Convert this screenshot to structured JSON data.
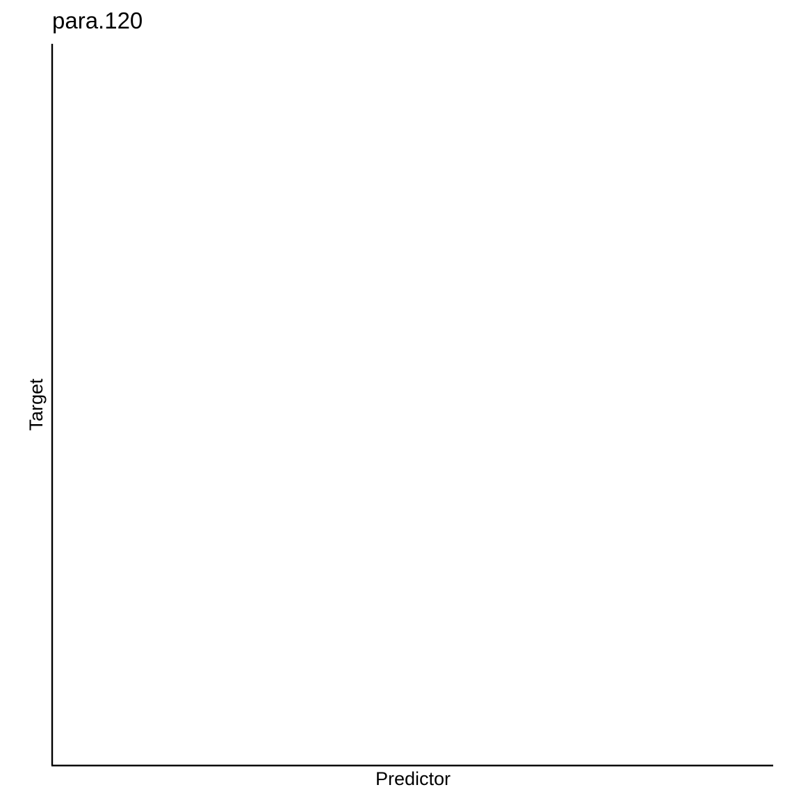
{
  "chart_data": {
    "type": "scatter",
    "title": "para.120",
    "xlabel": "Predictor",
    "ylabel": "Target",
    "series": [],
    "grid": false,
    "legend": "none"
  }
}
